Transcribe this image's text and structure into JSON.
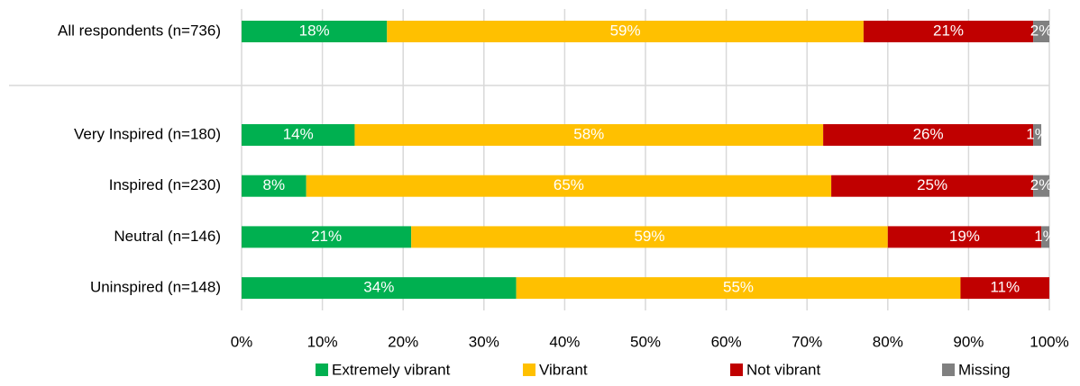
{
  "chart_data": {
    "type": "stacked_bar_horizontal",
    "categories": [
      "All respondents (n=736)",
      "Very Inspired (n=180)",
      "Inspired (n=230)",
      "Neutral (n=146)",
      "Uninspired (n=148)"
    ],
    "series": [
      {
        "name": "Extremely vibrant",
        "color": "#00b050",
        "values": [
          18,
          14,
          8,
          21,
          34
        ],
        "value_labels": [
          "18%",
          "14%",
          "8%",
          "21%",
          "34%"
        ]
      },
      {
        "name": "Vibrant",
        "color": "#ffc000",
        "values": [
          59,
          58,
          65,
          59,
          55
        ],
        "value_labels": [
          "59%",
          "58%",
          "65%",
          "59%",
          "55%"
        ]
      },
      {
        "name": "Not vibrant",
        "color": "#c00000",
        "values": [
          21,
          26,
          25,
          19,
          11
        ],
        "value_labels": [
          "21%",
          "26%",
          "25%",
          "19%",
          "11%"
        ]
      },
      {
        "name": "Missing",
        "color": "#808080",
        "values": [
          2,
          1,
          2,
          1,
          null
        ],
        "value_labels": [
          "2%",
          "1%",
          "2%",
          "1%",
          null
        ]
      }
    ],
    "xlim": [
      0,
      100
    ],
    "xticks": [
      {
        "value": 0,
        "label": "0%"
      },
      {
        "value": 10,
        "label": "10%"
      },
      {
        "value": 20,
        "label": "20%"
      },
      {
        "value": 30,
        "label": "30%"
      },
      {
        "value": 40,
        "label": "40%"
      },
      {
        "value": 50,
        "label": "50%"
      },
      {
        "value": 60,
        "label": "60%"
      },
      {
        "value": 70,
        "label": "70%"
      },
      {
        "value": 80,
        "label": "80%"
      },
      {
        "value": 90,
        "label": "90%"
      },
      {
        "value": 100,
        "label": "100%"
      }
    ],
    "grid": true,
    "legend": "bottom"
  }
}
